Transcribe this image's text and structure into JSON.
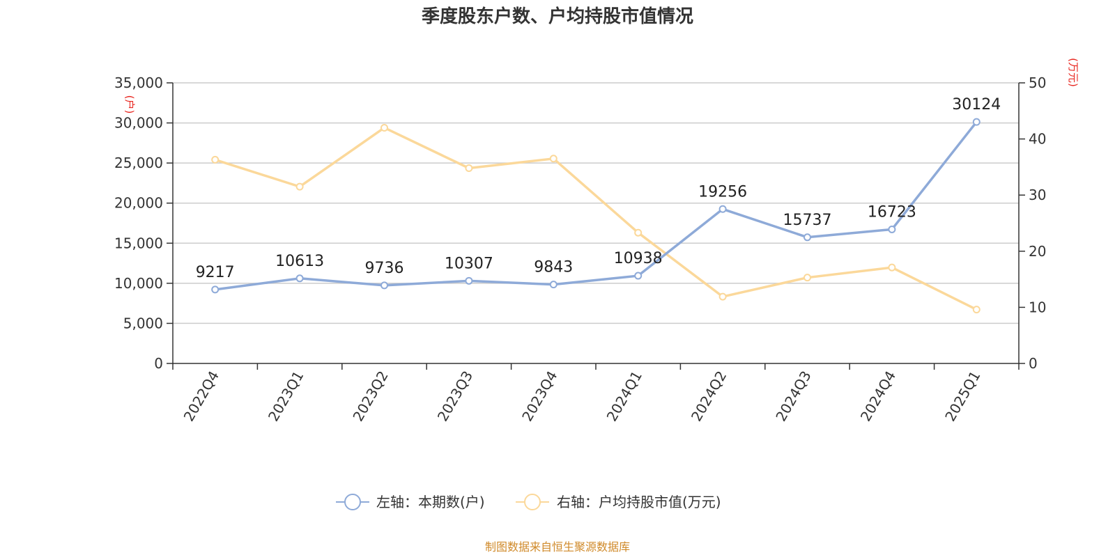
{
  "chart_data": {
    "type": "line",
    "title": "季度股东户数、户均持股市值情况",
    "categories": [
      "2022Q4",
      "2023Q1",
      "2023Q2",
      "2023Q3",
      "2023Q4",
      "2024Q1",
      "2024Q2",
      "2024Q3",
      "2024Q4",
      "2025Q1"
    ],
    "y_left": {
      "unit": "(户)",
      "range": [
        0,
        35000
      ],
      "ticks": [
        "0",
        "5,000",
        "10,000",
        "15,000",
        "20,000",
        "25,000",
        "30,000",
        "35,000"
      ]
    },
    "y_right": {
      "unit": "(万元)",
      "range": [
        0,
        50
      ],
      "ticks": [
        "0",
        "10",
        "20",
        "30",
        "40",
        "50"
      ]
    },
    "series": [
      {
        "name": "左轴：本期数(户)",
        "axis": "left",
        "color": "#8eaad8",
        "values": [
          9217,
          10613,
          9736,
          10307,
          9843,
          10938,
          19256,
          15737,
          16723,
          30124
        ],
        "labels": [
          "9217",
          "10613",
          "9736",
          "10307",
          "9843",
          "10938",
          "19256",
          "15737",
          "16723",
          "30124"
        ]
      },
      {
        "name": "右轴：户均持股市值(万元)",
        "axis": "right",
        "color": "#fbd89a",
        "values": [
          36.3,
          31.5,
          42.0,
          34.8,
          36.5,
          23.3,
          11.9,
          15.3,
          17.1,
          9.6
        ]
      }
    ],
    "grid": true,
    "legend_position": "bottom"
  },
  "footer": "制图数据来自恒生聚源数据库"
}
